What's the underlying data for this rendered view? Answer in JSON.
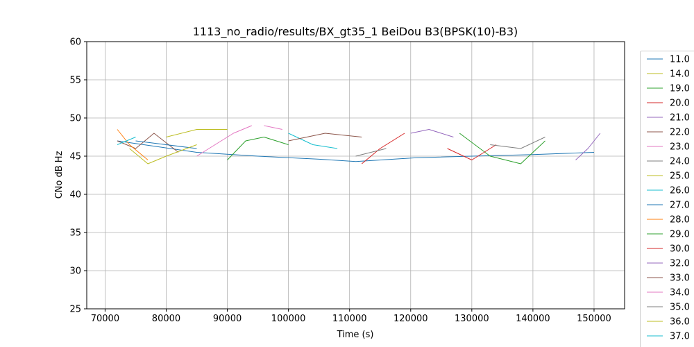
{
  "chart_data": {
    "type": "line",
    "title": "1113_no_radio/results/BX_gt35_1 BeiDou B3(BPSK(10)-B3)",
    "xlabel": "Time (s)",
    "ylabel": "CNo dB Hz",
    "xlim": [
      67000,
      155000
    ],
    "ylim": [
      25,
      60
    ],
    "xticks": [
      70000,
      80000,
      90000,
      100000,
      110000,
      120000,
      130000,
      140000,
      150000
    ],
    "yticks": [
      25,
      30,
      35,
      40,
      45,
      50,
      55,
      60
    ],
    "grid": true,
    "legend_position": "right-outside",
    "series": [
      {
        "name": "11.0",
        "color": "#1f77b4",
        "x": [
          72000,
          85000,
          95000,
          105000,
          111000,
          121000,
          130000,
          140000,
          150000
        ],
        "y": [
          47.0,
          45.5,
          45.0,
          44.6,
          44.3,
          44.8,
          45.0,
          45.2,
          45.5
        ]
      },
      {
        "name": "14.0",
        "color": "#bcbd22",
        "x": [
          74000,
          77000,
          80000
        ],
        "y": [
          46.0,
          44.0,
          45.0
        ]
      },
      {
        "name": "19.0",
        "color": "#2ca02c",
        "x": [
          128000,
          133000,
          138000,
          142000
        ],
        "y": [
          48.0,
          45.0,
          44.0,
          47.0
        ]
      },
      {
        "name": "20.0",
        "color": "#d62728",
        "x": [
          126000,
          130000,
          134000
        ],
        "y": [
          46.0,
          44.5,
          46.5
        ]
      },
      {
        "name": "21.0",
        "color": "#9467bd",
        "x": [
          147000,
          149000,
          151000
        ],
        "y": [
          44.5,
          46.0,
          48.0
        ]
      },
      {
        "name": "22.0",
        "color": "#8c564b",
        "x": [
          72000,
          75000,
          78000,
          82000
        ],
        "y": [
          47.0,
          46.0,
          48.0,
          45.5
        ]
      },
      {
        "name": "23.0",
        "color": "#e377c2",
        "x": [
          85000,
          88000,
          91000,
          94000
        ],
        "y": [
          45.0,
          46.5,
          48.0,
          49.0
        ]
      },
      {
        "name": "24.0",
        "color": "#7f7f7f",
        "x": [
          133000,
          138000,
          142000
        ],
        "y": [
          46.5,
          46.0,
          47.5
        ]
      },
      {
        "name": "25.0",
        "color": "#bcbd22",
        "x": [
          80000,
          85000,
          90000
        ],
        "y": [
          47.5,
          48.5,
          48.5
        ]
      },
      {
        "name": "26.0",
        "color": "#17becf",
        "x": [
          100000,
          104000,
          108000
        ],
        "y": [
          48.0,
          46.5,
          46.0
        ]
      },
      {
        "name": "27.0",
        "color": "#1f77b4",
        "x": [
          75000,
          80000,
          85000
        ],
        "y": [
          47.0,
          46.5,
          46.0
        ]
      },
      {
        "name": "28.0",
        "color": "#ff7f0e",
        "x": [
          72000,
          74000,
          77000
        ],
        "y": [
          48.5,
          46.5,
          44.5
        ]
      },
      {
        "name": "29.0",
        "color": "#2ca02c",
        "x": [
          90000,
          93000,
          96000,
          100000
        ],
        "y": [
          44.5,
          47.0,
          47.5,
          46.5
        ]
      },
      {
        "name": "30.0",
        "color": "#d62728",
        "x": [
          112000,
          115000,
          119000
        ],
        "y": [
          44.0,
          46.0,
          48.0
        ]
      },
      {
        "name": "32.0",
        "color": "#9467bd",
        "x": [
          120000,
          123000,
          127000
        ],
        "y": [
          48.0,
          48.5,
          47.5
        ]
      },
      {
        "name": "33.0",
        "color": "#8c564b",
        "x": [
          100000,
          106000,
          112000
        ],
        "y": [
          47.0,
          48.0,
          47.5
        ]
      },
      {
        "name": "34.0",
        "color": "#e377c2",
        "x": [
          96000,
          99000
        ],
        "y": [
          49.0,
          48.5
        ]
      },
      {
        "name": "35.0",
        "color": "#7f7f7f",
        "x": [
          111000,
          116000
        ],
        "y": [
          45.0,
          46.0
        ]
      },
      {
        "name": "36.0",
        "color": "#bcbd22",
        "x": [
          80000,
          85000
        ],
        "y": [
          45.0,
          46.5
        ]
      },
      {
        "name": "37.0",
        "color": "#17becf",
        "x": [
          72000,
          75000
        ],
        "y": [
          46.5,
          47.5
        ]
      }
    ]
  }
}
